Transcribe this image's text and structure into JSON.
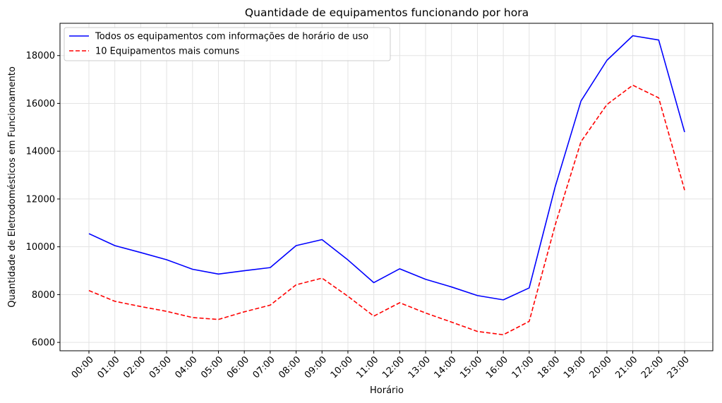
{
  "chart_data": {
    "type": "line",
    "title": "Quantidade de equipamentos funcionando por hora",
    "xlabel": "Horário",
    "ylabel": "Quantidade de Eletrodomésticos em Funcionamento",
    "categories": [
      "00:00",
      "01:00",
      "02:00",
      "03:00",
      "04:00",
      "05:00",
      "06:00",
      "07:00",
      "08:00",
      "09:00",
      "10:00",
      "11:00",
      "12:00",
      "13:00",
      "14:00",
      "15:00",
      "16:00",
      "17:00",
      "18:00",
      "19:00",
      "20:00",
      "21:00",
      "22:00",
      "23:00"
    ],
    "ylim": [
      5650,
      19350
    ],
    "yticks": [
      6000,
      8000,
      10000,
      12000,
      14000,
      16000,
      18000
    ],
    "grid": true,
    "legend_position": "top-left",
    "series": [
      {
        "name": "Todos os equipamentos com informações de horário de uso",
        "color": "#0000ff",
        "style": "solid",
        "values": [
          10550,
          10050,
          9760,
          9460,
          9060,
          8860,
          9000,
          9130,
          10050,
          10300,
          9450,
          8500,
          9080,
          8640,
          8320,
          7960,
          7780,
          8280,
          12500,
          16100,
          17800,
          18830,
          18650,
          14800
        ]
      },
      {
        "name": "10 Equipamentos mais comuns",
        "color": "#ff0000",
        "style": "dashed",
        "values": [
          8170,
          7720,
          7500,
          7300,
          7040,
          6960,
          7280,
          7560,
          8410,
          8690,
          7930,
          7100,
          7660,
          7230,
          6850,
          6460,
          6320,
          6880,
          10900,
          14400,
          15950,
          16760,
          16230,
          12370
        ]
      }
    ]
  }
}
